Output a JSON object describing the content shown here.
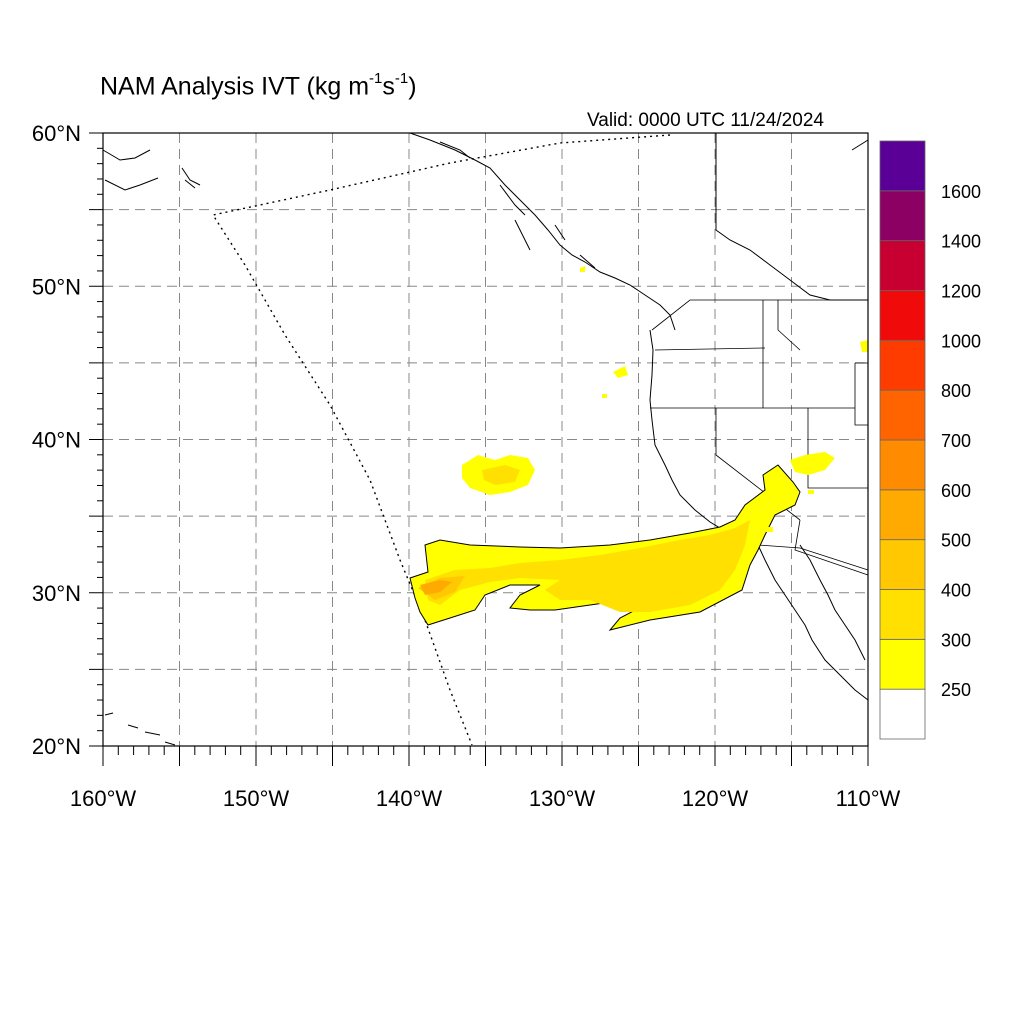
{
  "title": {
    "prefix": "NAM Analysis IVT (kg m",
    "exp1": "-1",
    "mid": "s",
    "exp2": "-1",
    "suffix": ")"
  },
  "valid_time": "Valid: 0000 UTC 11/24/2024",
  "map": {
    "lon_range": [
      -160,
      -110
    ],
    "lat_range": [
      20,
      60
    ],
    "lon_tick_labels": [
      "160°W",
      "150°W",
      "140°W",
      "130°W",
      "120°W",
      "110°W"
    ],
    "lat_tick_labels": [
      "20°N",
      "30°N",
      "40°N",
      "50°N",
      "60°N"
    ],
    "grid_spacing_deg": 5,
    "gridlines": "dashed",
    "field": "Integrated vapor transport"
  },
  "colorbar": {
    "placement": "right",
    "levels": [
      "250",
      "300",
      "400",
      "500",
      "600",
      "700",
      "800",
      "1000",
      "1200",
      "1400",
      "1600"
    ],
    "colors": [
      "#ffffff",
      "#ffff00",
      "#ffe000",
      "#ffc800",
      "#ffaa00",
      "#ff8c00",
      "#ff6400",
      "#ff3c00",
      "#f00a0a",
      "#c80032",
      "#8c0064",
      "#5a0096"
    ]
  }
}
